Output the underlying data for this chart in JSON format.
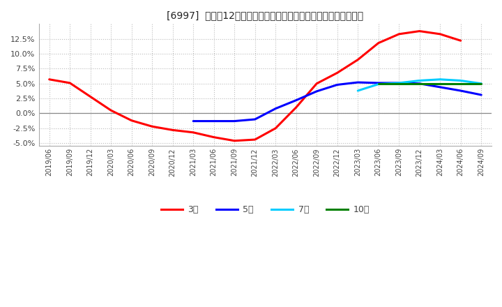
{
  "title": "[6997]  売上高12か月移動合計の対前年同期増減率の平均値の推移",
  "ylim": [
    -0.055,
    0.15
  ],
  "yticks": [
    -0.05,
    -0.025,
    0.0,
    0.025,
    0.05,
    0.075,
    0.1,
    0.125
  ],
  "background_color": "#ffffff",
  "grid_color": "#bbbbbb",
  "series": {
    "3year": {
      "color": "#ff0000",
      "label": "3年",
      "points": [
        [
          "2019/06",
          0.057
        ],
        [
          "2019/09",
          0.051
        ],
        [
          "2019/12",
          0.028
        ],
        [
          "2020/03",
          0.005
        ],
        [
          "2020/06",
          -0.012
        ],
        [
          "2020/09",
          -0.022
        ],
        [
          "2020/12",
          -0.028
        ],
        [
          "2021/03",
          -0.032
        ],
        [
          "2021/06",
          -0.04
        ],
        [
          "2021/09",
          -0.046
        ],
        [
          "2021/12",
          -0.044
        ],
        [
          "2022/03",
          -0.025
        ],
        [
          "2022/06",
          0.01
        ],
        [
          "2022/09",
          0.05
        ],
        [
          "2022/12",
          0.068
        ],
        [
          "2023/03",
          0.09
        ],
        [
          "2023/06",
          0.118
        ],
        [
          "2023/09",
          0.133
        ],
        [
          "2023/12",
          0.138
        ],
        [
          "2024/03",
          0.133
        ],
        [
          "2024/06",
          0.122
        ]
      ]
    },
    "5year": {
      "color": "#0000ff",
      "label": "5年",
      "points": [
        [
          "2021/03",
          -0.013
        ],
        [
          "2021/06",
          -0.013
        ],
        [
          "2021/09",
          -0.013
        ],
        [
          "2021/12",
          -0.01
        ],
        [
          "2022/03",
          0.008
        ],
        [
          "2022/06",
          0.022
        ],
        [
          "2022/09",
          0.037
        ],
        [
          "2022/12",
          0.048
        ],
        [
          "2023/03",
          0.052
        ],
        [
          "2023/06",
          0.051
        ],
        [
          "2023/09",
          0.051
        ],
        [
          "2023/12",
          0.05
        ],
        [
          "2024/03",
          0.044
        ],
        [
          "2024/06",
          0.038
        ],
        [
          "2024/09",
          0.031
        ]
      ]
    },
    "7year": {
      "color": "#00ccff",
      "label": "7年",
      "points": [
        [
          "2023/03",
          0.038
        ],
        [
          "2023/06",
          0.049
        ],
        [
          "2023/09",
          0.051
        ],
        [
          "2023/12",
          0.055
        ],
        [
          "2024/03",
          0.057
        ],
        [
          "2024/06",
          0.055
        ],
        [
          "2024/09",
          0.05
        ]
      ]
    },
    "10year": {
      "color": "#008000",
      "label": "10年",
      "points": [
        [
          "2023/06",
          0.05
        ],
        [
          "2023/09",
          0.05
        ],
        [
          "2023/12",
          0.05
        ],
        [
          "2024/03",
          0.05
        ],
        [
          "2024/06",
          0.05
        ],
        [
          "2024/09",
          0.05
        ]
      ]
    }
  },
  "x_tick_labels": [
    "2019/06",
    "2019/09",
    "2019/12",
    "2020/03",
    "2020/06",
    "2020/09",
    "2020/12",
    "2021/03",
    "2021/06",
    "2021/09",
    "2021/12",
    "2022/03",
    "2022/06",
    "2022/09",
    "2022/12",
    "2023/03",
    "2023/06",
    "2023/09",
    "2023/12",
    "2024/03",
    "2024/06",
    "2024/09"
  ],
  "legend_labels": [
    "3年",
    "5年",
    "7年",
    "10年"
  ],
  "legend_colors": [
    "#ff0000",
    "#0000ff",
    "#00ccff",
    "#008000"
  ]
}
